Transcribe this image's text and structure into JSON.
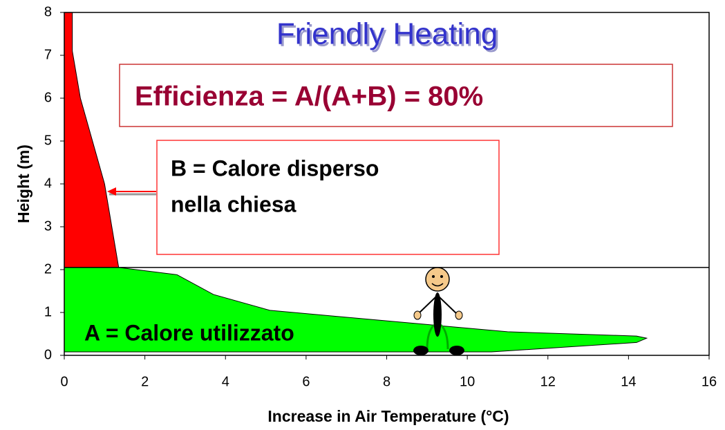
{
  "chart_data": {
    "type": "area",
    "title": "Friendly Heating",
    "x_label": "Increase in Air Temperature (°C)",
    "y_label": "Height (m)",
    "annotations": {
      "efficiency": "Efficienza = A/(A+B) = 80%",
      "b_lines": [
        "B =  Calore disperso",
        "nella chiesa"
      ],
      "a": "A = Calore utilizzato"
    },
    "series": [
      {
        "color": "#ff0000",
        "x": [
          0,
          0.2,
          0.2,
          0.4,
          1,
          1.35,
          0
        ],
        "values": [
          8,
          8,
          7.1,
          6,
          4,
          2.05,
          2.05
        ]
      },
      {
        "color": "#00ff00",
        "x": [
          0,
          1.35,
          2.8,
          3.7,
          5.1,
          11,
          14.2,
          14.45,
          14.2,
          10.6,
          0
        ],
        "values": [
          2.05,
          2.05,
          1.88,
          1.42,
          1.05,
          0.55,
          0.45,
          0.4,
          0.3,
          0.08,
          0.08
        ]
      }
    ],
    "hline": 2.05,
    "xlim": [
      0,
      16
    ],
    "xticks": [
      0,
      2,
      4,
      6,
      8,
      10,
      12,
      14,
      16
    ],
    "ylim": [
      0,
      8
    ],
    "yticks": [
      0,
      1,
      2,
      3,
      4,
      5,
      6,
      7,
      8
    ],
    "grid": false
  }
}
